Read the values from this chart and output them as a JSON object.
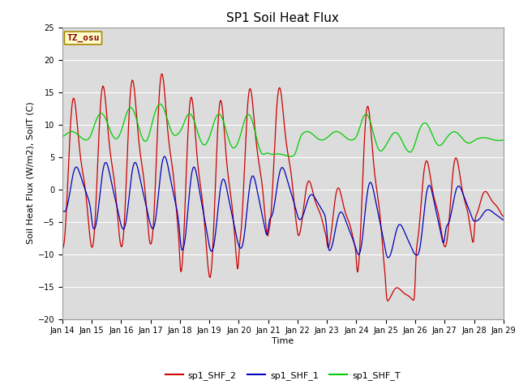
{
  "title": "SP1 Soil Heat Flux",
  "xlabel": "Time",
  "ylabel": "Soil Heat Flux (W/m2), SoilT (C)",
  "ylim": [
    -20,
    25
  ],
  "x_tick_labels": [
    "Jan 14",
    "Jan 15",
    "Jan 16",
    "Jan 17",
    "Jan 18",
    "Jan 19",
    "Jan 20",
    "Jan 21",
    "Jan 22",
    "Jan 23",
    "Jan 24",
    "Jan 25",
    "Jan 26",
    "Jan 27",
    "Jan 28",
    "Jan 29"
  ],
  "bg_color": "#dcdcdc",
  "fig_color": "#ffffff",
  "line_colors": {
    "shf2": "#cc0000",
    "shf1": "#0000bb",
    "shfT": "#00cc00"
  },
  "legend_labels": [
    "sp1_SHF_2",
    "sp1_SHF_1",
    "sp1_SHF_T"
  ],
  "tz_label": "TZ_osu",
  "tz_bg": "#ffffcc",
  "tz_border": "#aa8800",
  "tz_text_color": "#880000",
  "yticks": [
    -20,
    -15,
    -10,
    -5,
    0,
    5,
    10,
    15,
    20,
    25
  ],
  "title_fontsize": 11,
  "axis_fontsize": 8,
  "tick_fontsize": 7,
  "legend_fontsize": 8,
  "n_days": 15,
  "n_per_day": 48
}
